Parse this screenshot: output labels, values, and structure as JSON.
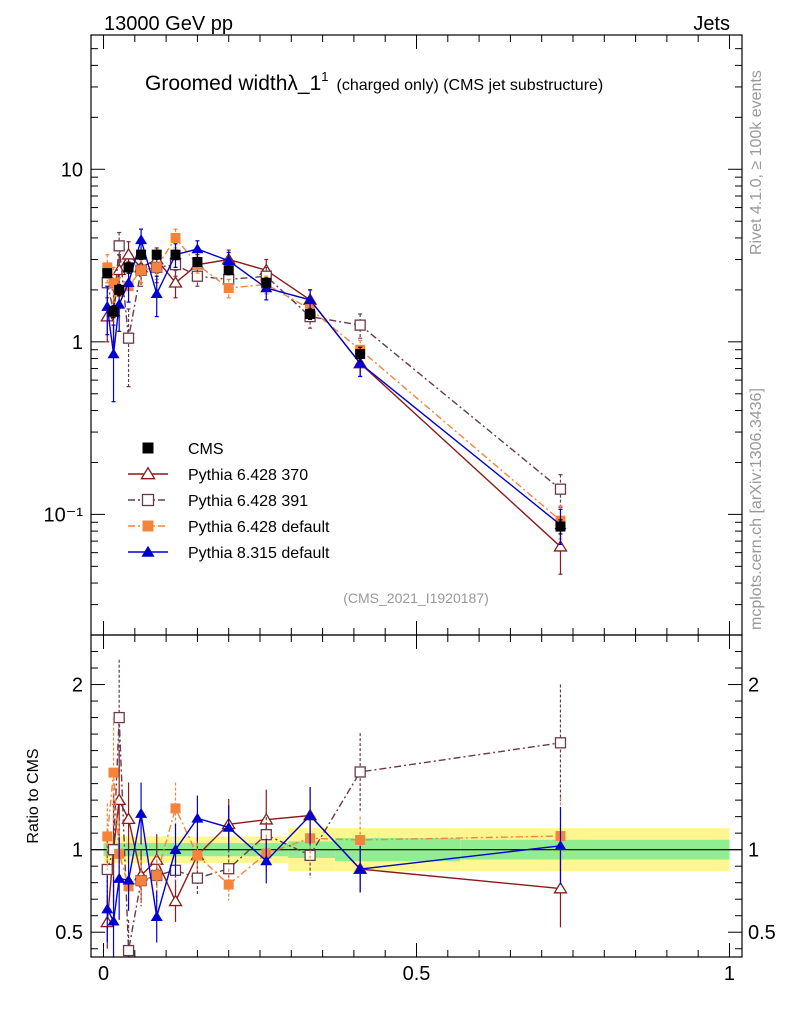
{
  "header": {
    "left": "13000 GeV pp",
    "right": "Jets"
  },
  "side_labels": {
    "rivet": "Rivet 4.1.0, ≥ 100k events",
    "mcplots": "mcplots.cern.ch [arXiv:1306.3436]"
  },
  "chart_data": {
    "type": "scatter",
    "title": "Groomed widthλ_1",
    "title_sup": "1",
    "title_suffix": "(charged only) (CMS jet substructure)",
    "analysis_id": "(CMS_2021_I1920187)",
    "yscale": "log",
    "xlim": [
      -0.02,
      1.02
    ],
    "ylim": [
      0.02,
      60
    ],
    "x_ticks": [
      0,
      0.5,
      1
    ],
    "x_tick_labels": [
      "0",
      "0.5",
      "1"
    ],
    "y_ticks": [
      0.1,
      1,
      10
    ],
    "y_tick_labels": [
      "10⁻¹",
      "1",
      "10"
    ],
    "ratio": {
      "ylabel": "Ratio to CMS",
      "ylim": [
        0.35,
        2.3
      ],
      "y_ticks": [
        0.5,
        1,
        2
      ],
      "y_tick_labels": [
        "0.5",
        "1",
        "2"
      ]
    },
    "legend_position": "bottom-left",
    "x": [
      0.006,
      0.016,
      0.025,
      0.04,
      0.06,
      0.085,
      0.115,
      0.15,
      0.2,
      0.26,
      0.33,
      0.41,
      0.73
    ],
    "series": [
      {
        "name": "CMS",
        "color": "#000000",
        "marker": "filled-square",
        "line": "none",
        "values": [
          2.5,
          1.5,
          2.0,
          2.7,
          3.2,
          3.2,
          3.2,
          2.9,
          2.6,
          2.2,
          1.45,
          0.85,
          0.085
        ],
        "err": [
          0.15,
          0.12,
          0.15,
          0.2,
          0.2,
          0.2,
          0.2,
          0.15,
          0.15,
          0.12,
          0.1,
          0.08,
          0.008
        ],
        "band_inner": [
          0.04,
          0.04,
          0.04,
          0.04,
          0.04,
          0.04,
          0.04,
          0.04,
          0.04,
          0.04,
          0.05,
          0.07,
          0.06
        ],
        "band_outer": [
          0.08,
          0.08,
          0.08,
          0.08,
          0.08,
          0.08,
          0.08,
          0.08,
          0.08,
          0.08,
          0.13,
          0.13,
          0.13
        ]
      },
      {
        "name": "Pythia 6.428 370",
        "color": "#8b1a1a",
        "marker": "open-triangle",
        "line": "solid",
        "values": [
          1.4,
          1.5,
          2.6,
          3.2,
          2.7,
          3.0,
          2.2,
          2.8,
          3.0,
          2.6,
          1.75,
          0.75,
          0.065
        ],
        "err": [
          0.4,
          0.5,
          0.6,
          0.6,
          0.5,
          0.5,
          0.4,
          0.4,
          0.4,
          0.4,
          0.25,
          0.12,
          0.02
        ]
      },
      {
        "name": "Pythia 6.428 391",
        "color": "#6b3a4a",
        "marker": "open-square",
        "line": "dashdot",
        "values": [
          2.2,
          1.5,
          3.6,
          1.05,
          2.6,
          2.7,
          2.8,
          2.4,
          2.3,
          2.4,
          1.4,
          1.25,
          0.14
        ],
        "err": [
          0.6,
          0.5,
          0.7,
          0.5,
          0.5,
          0.5,
          0.4,
          0.3,
          0.3,
          0.3,
          0.2,
          0.2,
          0.03
        ]
      },
      {
        "name": "Pythia 6.428 default",
        "color": "#f4843c",
        "marker": "filled-square",
        "line": "dashdot",
        "values": [
          2.7,
          2.2,
          1.95,
          2.1,
          2.6,
          2.7,
          4.0,
          2.8,
          2.05,
          2.15,
          1.55,
          0.9,
          0.092
        ],
        "err": [
          0.5,
          0.5,
          0.4,
          0.4,
          0.4,
          0.4,
          0.5,
          0.3,
          0.25,
          0.25,
          0.2,
          0.12,
          0.02
        ]
      },
      {
        "name": "Pythia 8.315 default",
        "color": "#0000d0",
        "marker": "filled-triangle",
        "line": "solid",
        "values": [
          1.6,
          0.85,
          1.65,
          2.2,
          3.9,
          1.9,
          3.2,
          3.45,
          2.95,
          2.05,
          1.75,
          0.75,
          0.087
        ],
        "err": [
          0.5,
          0.4,
          0.5,
          0.5,
          0.6,
          0.5,
          0.5,
          0.4,
          0.35,
          0.3,
          0.25,
          0.12,
          0.02
        ]
      }
    ]
  }
}
